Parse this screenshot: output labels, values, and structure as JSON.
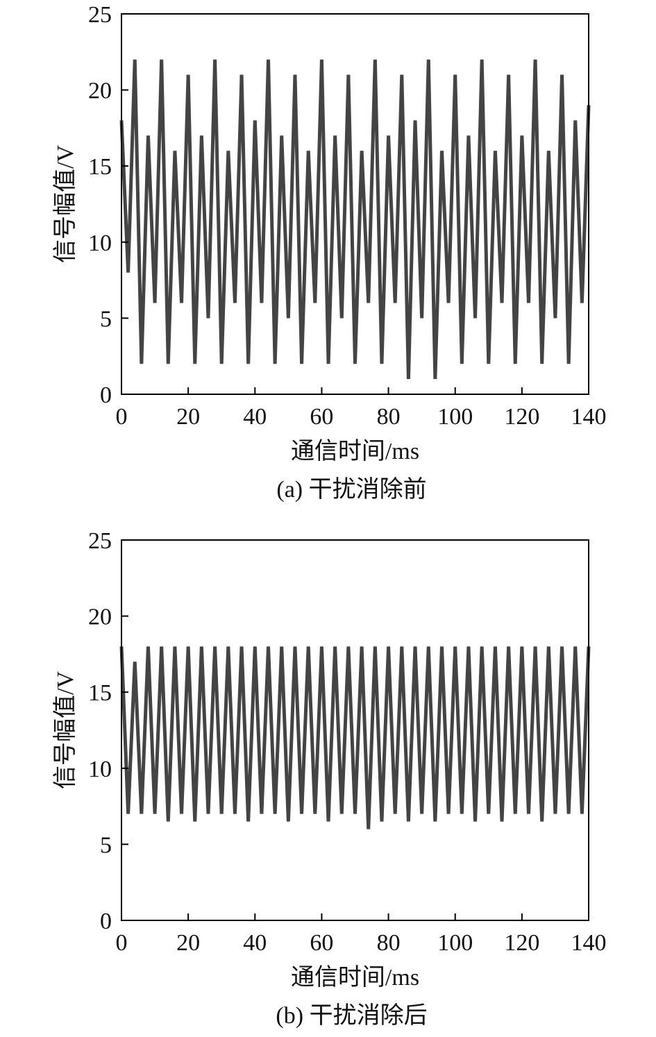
{
  "chart_data": [
    {
      "type": "line",
      "caption": "(a) 干扰消除前",
      "x_label": "通信时间/ms",
      "y_label": "信号幅值/V",
      "xlim": [
        0,
        140
      ],
      "xticks": [
        0,
        20,
        40,
        60,
        80,
        100,
        120,
        140
      ],
      "ylim": [
        0,
        25
      ],
      "yticks": [
        0,
        5,
        10,
        15,
        20,
        25
      ],
      "series": [
        {
          "color": "#444444",
          "x": [
            0,
            2,
            4,
            6,
            8,
            10,
            12,
            14,
            16,
            18,
            20,
            22,
            24,
            26,
            28,
            30,
            32,
            34,
            36,
            38,
            40,
            42,
            44,
            46,
            48,
            50,
            52,
            54,
            56,
            58,
            60,
            62,
            64,
            66,
            68,
            70,
            72,
            74,
            76,
            78,
            80,
            82,
            84,
            86,
            88,
            90,
            92,
            94,
            96,
            98,
            100,
            102,
            104,
            106,
            108,
            110,
            112,
            114,
            116,
            118,
            120,
            122,
            124,
            126,
            128,
            130,
            132,
            134,
            136,
            138,
            140
          ],
          "values": [
            18,
            8,
            22,
            2,
            17,
            6,
            22,
            2,
            16,
            6,
            21,
            2,
            17,
            5,
            22,
            2,
            16,
            6,
            21,
            2,
            18,
            6,
            22,
            2,
            17,
            5,
            21,
            2,
            16,
            6,
            22,
            2,
            17,
            5,
            21,
            2,
            16,
            6,
            22,
            2,
            17,
            6,
            21,
            1,
            18,
            5,
            22,
            1,
            16,
            6,
            21,
            2,
            17,
            5,
            22,
            2,
            16,
            6,
            21,
            2,
            17,
            6,
            22,
            2,
            16,
            5,
            21,
            2,
            18,
            6,
            19
          ]
        }
      ]
    },
    {
      "type": "line",
      "caption": "(b) 干扰消除后",
      "x_label": "通信时间/ms",
      "y_label": "信号幅值/V",
      "xlim": [
        0,
        140
      ],
      "xticks": [
        0,
        20,
        40,
        60,
        80,
        100,
        120,
        140
      ],
      "ylim": [
        0,
        25
      ],
      "yticks": [
        0,
        5,
        10,
        15,
        20,
        25
      ],
      "series": [
        {
          "color": "#444444",
          "x": [
            0,
            2,
            4,
            6,
            8,
            10,
            12,
            14,
            16,
            18,
            20,
            22,
            24,
            26,
            28,
            30,
            32,
            34,
            36,
            38,
            40,
            42,
            44,
            46,
            48,
            50,
            52,
            54,
            56,
            58,
            60,
            62,
            64,
            66,
            68,
            70,
            72,
            74,
            76,
            78,
            80,
            82,
            84,
            86,
            88,
            90,
            92,
            94,
            96,
            98,
            100,
            102,
            104,
            106,
            108,
            110,
            112,
            114,
            116,
            118,
            120,
            122,
            124,
            126,
            128,
            130,
            132,
            134,
            136,
            138,
            140
          ],
          "values": [
            18,
            7,
            17,
            7,
            18,
            7,
            18,
            6.5,
            18,
            7,
            18,
            6.5,
            18,
            7,
            18,
            7,
            18,
            7,
            18,
            6.5,
            18,
            7,
            18,
            7,
            18,
            6.5,
            18,
            7,
            18,
            7,
            18,
            6.5,
            18,
            7,
            18,
            7,
            18,
            6,
            18,
            6.5,
            18,
            7,
            18,
            6.5,
            18,
            7,
            18,
            6.5,
            18,
            7,
            18,
            7,
            18,
            6.5,
            18,
            7,
            18,
            6.5,
            18,
            7,
            18,
            7,
            18,
            6.5,
            18,
            7,
            18,
            7,
            18,
            7,
            18
          ]
        }
      ]
    }
  ]
}
